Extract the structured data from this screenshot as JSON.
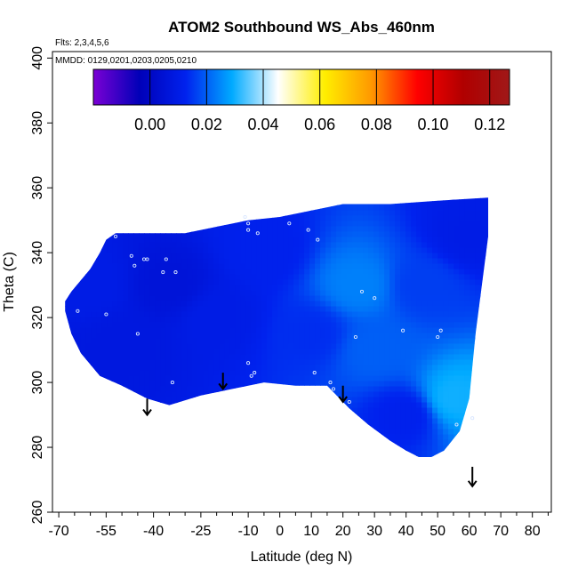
{
  "chart_data": {
    "type": "heatmap",
    "title": "ATOM2 Southbound WS_Abs_460nm",
    "annotations": {
      "flights": "Flts: 2,3,4,5,6",
      "dates": "MMDD: 0129,0201,0203,0205,0210"
    },
    "xlabel": "Latitude (deg N)",
    "ylabel": "Theta (C)",
    "xlim": [
      -72,
      86
    ],
    "ylim": [
      260,
      402
    ],
    "x_ticks": [
      -70,
      -55,
      -40,
      -25,
      -10,
      0,
      10,
      20,
      30,
      40,
      50,
      60,
      70,
      80
    ],
    "x_tick_labels": [
      "-70",
      "-55",
      "-40",
      "-25",
      "-10",
      "0",
      "10",
      "20",
      "30",
      "40",
      "50",
      "60",
      "70",
      "80"
    ],
    "x_minor_ticks": [
      -65,
      -60,
      -50,
      -45,
      -35,
      -30,
      -20,
      -15,
      -5,
      5,
      15,
      25,
      35,
      45,
      55,
      65,
      75,
      85
    ],
    "y_ticks": [
      260,
      280,
      300,
      320,
      340,
      360,
      380,
      400
    ],
    "y_tick_labels": [
      "260",
      "280",
      "300",
      "320",
      "340",
      "360",
      "380",
      "400"
    ],
    "colorbar": {
      "range": [
        -0.02,
        0.127
      ],
      "ticks": [
        0.0,
        0.02,
        0.04,
        0.06,
        0.08,
        0.1,
        0.12
      ],
      "tick_labels": [
        "0.00",
        "0.02",
        "0.04",
        "0.06",
        "0.08",
        "0.10",
        "0.12"
      ],
      "colors": [
        "#7b00d4",
        "#0000b8",
        "#0022ee",
        "#00aaff",
        "#ffffff",
        "#ffee00",
        "#ff9900",
        "#ff0000",
        "#b00000",
        "#a01818"
      ]
    },
    "region_outline": [
      [
        -68,
        325
      ],
      [
        -66,
        328
      ],
      [
        -60,
        335
      ],
      [
        -57,
        340
      ],
      [
        -55,
        344
      ],
      [
        -52,
        346
      ],
      [
        -40,
        346
      ],
      [
        -30,
        346
      ],
      [
        -20,
        348
      ],
      [
        -10,
        350
      ],
      [
        0,
        351
      ],
      [
        10,
        353
      ],
      [
        20,
        355
      ],
      [
        35,
        355
      ],
      [
        50,
        356
      ],
      [
        66,
        357
      ],
      [
        66,
        345
      ],
      [
        64,
        330
      ],
      [
        62,
        315
      ],
      [
        60,
        295
      ],
      [
        57,
        285
      ],
      [
        52,
        279
      ],
      [
        48,
        277
      ],
      [
        44,
        277
      ],
      [
        40,
        279
      ],
      [
        35,
        282
      ],
      [
        28,
        287
      ],
      [
        22,
        292
      ],
      [
        18,
        296
      ],
      [
        15,
        299
      ],
      [
        5,
        299
      ],
      [
        -5,
        300
      ],
      [
        -15,
        298
      ],
      [
        -25,
        296
      ],
      [
        -35,
        293
      ],
      [
        -42,
        295
      ],
      [
        -50,
        299
      ],
      [
        -57,
        302
      ],
      [
        -63,
        309
      ],
      [
        -66,
        315
      ],
      [
        -68,
        322
      ]
    ],
    "field_points": [
      {
        "x": -60,
        "y": 330,
        "v": 0.01
      },
      {
        "x": -50,
        "y": 312,
        "v": 0.008
      },
      {
        "x": -35,
        "y": 330,
        "v": 0.006
      },
      {
        "x": -20,
        "y": 320,
        "v": 0.01
      },
      {
        "x": -5,
        "y": 340,
        "v": 0.012
      },
      {
        "x": 10,
        "y": 315,
        "v": 0.014
      },
      {
        "x": 25,
        "y": 330,
        "v": 0.024
      },
      {
        "x": 30,
        "y": 310,
        "v": 0.02
      },
      {
        "x": 45,
        "y": 330,
        "v": 0.016
      },
      {
        "x": 55,
        "y": 295,
        "v": 0.03
      },
      {
        "x": 60,
        "y": 345,
        "v": 0.01
      },
      {
        "x": 40,
        "y": 290,
        "v": 0.012
      }
    ],
    "sample_points": [
      [
        -52,
        345
      ],
      [
        -47,
        339
      ],
      [
        -46,
        336
      ],
      [
        -43,
        338
      ],
      [
        -42,
        338
      ],
      [
        -37,
        334
      ],
      [
        -36,
        338
      ],
      [
        -33,
        334
      ],
      [
        -64,
        322
      ],
      [
        -55,
        321
      ],
      [
        -45,
        315
      ],
      [
        -11,
        351
      ],
      [
        -10,
        349
      ],
      [
        -10,
        347
      ],
      [
        -7,
        346
      ],
      [
        3,
        349
      ],
      [
        9,
        347
      ],
      [
        12,
        344
      ],
      [
        -10,
        306
      ],
      [
        -8,
        303
      ],
      [
        -9,
        302
      ],
      [
        11,
        303
      ],
      [
        16,
        300
      ],
      [
        17,
        298
      ],
      [
        22,
        294
      ],
      [
        24,
        314
      ],
      [
        26,
        328
      ],
      [
        30,
        326
      ],
      [
        39,
        316
      ],
      [
        50,
        314
      ],
      [
        51,
        316
      ],
      [
        56,
        287
      ],
      [
        61,
        289
      ],
      [
        -34,
        300
      ]
    ],
    "arrows": [
      {
        "x": -42,
        "y_top": 295,
        "y_tip": 290
      },
      {
        "x": -18,
        "y_top": 303,
        "y_tip": 298
      },
      {
        "x": 20,
        "y_top": 299,
        "y_tip": 294
      },
      {
        "x": 61,
        "y_top": 274,
        "y_tip": 268
      }
    ]
  }
}
